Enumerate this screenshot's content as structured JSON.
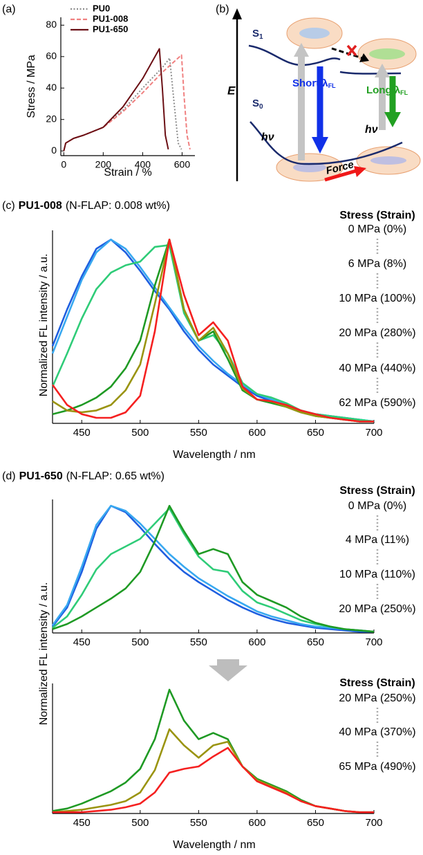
{
  "chart_data": [
    {
      "type": "line",
      "panel_label": "(a)",
      "x_label": "Strain / %",
      "y_label": "Stress / MPa",
      "xlim": [
        -15,
        665
      ],
      "xticks": [
        0,
        200,
        400,
        600
      ],
      "ylim": [
        -3,
        85
      ],
      "yticks": [
        0,
        20,
        40,
        60,
        80
      ],
      "legend": "upper left",
      "series": [
        {
          "name": "PU0",
          "color": "#8c8c8c",
          "dash": "dotted",
          "x": [
            0,
            10,
            50,
            100,
            200,
            300,
            400,
            500,
            537,
            560,
            580,
            597
          ],
          "values": [
            0,
            5,
            8,
            10,
            15,
            26,
            40,
            53,
            59,
            30,
            5,
            1
          ]
        },
        {
          "name": "PU1-008",
          "color": "#f08080",
          "dash": "dashed",
          "x": [
            0,
            10,
            50,
            100,
            200,
            300,
            400,
            500,
            597,
            610,
            625,
            640
          ],
          "values": [
            0,
            5,
            8,
            10,
            15,
            25,
            37,
            50,
            61,
            35,
            10,
            1
          ]
        },
        {
          "name": "PU1-650",
          "color": "#6b0f14",
          "dash": "solid",
          "x": [
            0,
            10,
            50,
            100,
            200,
            300,
            400,
            485,
            500,
            515,
            530
          ],
          "values": [
            0,
            5,
            8,
            10,
            15,
            28,
            46,
            65,
            40,
            10,
            1
          ]
        }
      ]
    },
    {
      "type": "line",
      "panel_label": "(c)",
      "title": "PU1-008",
      "subtitle": "(N-FLAP: 0.008 wt%)",
      "x_label": "Wavelength / nm",
      "y_label": "Normalized FL intensity / a.u.",
      "legend_title": "Stress (Strain)",
      "xlim": [
        425,
        700
      ],
      "xticks": [
        450,
        500,
        550,
        600,
        650,
        700
      ],
      "ylim": [
        0,
        1.05
      ],
      "x": [
        425,
        437.5,
        450,
        462.5,
        475,
        487.5,
        500,
        512.5,
        525,
        537.5,
        550,
        562.5,
        575,
        587.5,
        600,
        612.5,
        625,
        637.5,
        650,
        662.5,
        675,
        687.5,
        700
      ],
      "series": [
        {
          "name": "0 MPa (0%)",
          "color": "#1f5fe0",
          "values": [
            0.42,
            0.62,
            0.8,
            0.95,
            1.0,
            0.93,
            0.83,
            0.72,
            0.62,
            0.5,
            0.4,
            0.32,
            0.26,
            0.2,
            0.15,
            0.12,
            0.09,
            0.07,
            0.05,
            0.04,
            0.03,
            0.02,
            0.01
          ]
        },
        {
          "name": "6 MPa (8%)",
          "color": "#38a8f0",
          "values": [
            0.38,
            0.58,
            0.78,
            0.93,
            1.0,
            0.95,
            0.85,
            0.74,
            0.63,
            0.52,
            0.42,
            0.34,
            0.27,
            0.21,
            0.16,
            0.13,
            0.1,
            0.07,
            0.05,
            0.04,
            0.03,
            0.02,
            0.01
          ]
        },
        {
          "name": "10 MPa (100%)",
          "color": "#2fcc78",
          "values": [
            0.2,
            0.38,
            0.57,
            0.73,
            0.82,
            0.86,
            0.88,
            0.96,
            0.97,
            0.6,
            0.45,
            0.48,
            0.38,
            0.22,
            0.16,
            0.14,
            0.11,
            0.07,
            0.05,
            0.04,
            0.03,
            0.02,
            0.01
          ]
        },
        {
          "name": "20 MPa (280%)",
          "color": "#1f9a24",
          "values": [
            0.05,
            0.07,
            0.1,
            0.14,
            0.2,
            0.3,
            0.45,
            0.75,
            1.0,
            0.62,
            0.45,
            0.5,
            0.35,
            0.18,
            0.13,
            0.11,
            0.09,
            0.06,
            0.04,
            0.03,
            0.02,
            0.01,
            0.01
          ]
        },
        {
          "name": "40 MPa (440%)",
          "color": "#9a9410",
          "values": [
            0.12,
            0.07,
            0.06,
            0.07,
            0.1,
            0.18,
            0.32,
            0.65,
            1.0,
            0.62,
            0.45,
            0.52,
            0.38,
            0.19,
            0.13,
            0.12,
            0.09,
            0.06,
            0.04,
            0.03,
            0.02,
            0.01,
            0.01
          ]
        },
        {
          "name": "62 MPa (590%)",
          "color": "#f52020",
          "values": [
            0.21,
            0.1,
            0.05,
            0.03,
            0.03,
            0.06,
            0.15,
            0.5,
            1.0,
            0.7,
            0.48,
            0.55,
            0.45,
            0.2,
            0.13,
            0.12,
            0.1,
            0.07,
            0.05,
            0.03,
            0.02,
            0.01,
            0.01
          ]
        }
      ]
    },
    {
      "type": "line",
      "panel_label": "(d)",
      "title": "PU1-650",
      "subtitle": "(N-FLAP: 0.65 wt%)",
      "y_label": "Normalized FL intensity / a.u.",
      "legend_title": "Stress (Strain)",
      "xlim": [
        425,
        700
      ],
      "xticks": [
        450,
        500,
        550,
        600,
        650,
        700
      ],
      "ylim": [
        0,
        1.05
      ],
      "x": [
        425,
        437.5,
        450,
        462.5,
        475,
        487.5,
        500,
        512.5,
        525,
        537.5,
        550,
        562.5,
        575,
        587.5,
        600,
        612.5,
        625,
        637.5,
        650,
        662.5,
        675,
        687.5,
        700
      ],
      "series": [
        {
          "name": "0 MPa (0%)",
          "color": "#1f5fe0",
          "values": [
            0.05,
            0.2,
            0.48,
            0.82,
            1.0,
            0.95,
            0.83,
            0.7,
            0.58,
            0.48,
            0.4,
            0.33,
            0.26,
            0.2,
            0.15,
            0.11,
            0.08,
            0.06,
            0.04,
            0.03,
            0.02,
            0.01,
            0.01
          ]
        },
        {
          "name": "4 MPa (11%)",
          "color": "#38a8f0",
          "values": [
            0.06,
            0.22,
            0.52,
            0.85,
            1.0,
            0.96,
            0.86,
            0.74,
            0.62,
            0.52,
            0.43,
            0.36,
            0.29,
            0.23,
            0.17,
            0.13,
            0.1,
            0.07,
            0.05,
            0.04,
            0.03,
            0.02,
            0.01
          ]
        },
        {
          "name": "10 MPa (110%)",
          "color": "#2fcc78",
          "values": [
            0.04,
            0.13,
            0.3,
            0.5,
            0.62,
            0.68,
            0.74,
            0.86,
            0.98,
            0.78,
            0.6,
            0.5,
            0.48,
            0.33,
            0.24,
            0.2,
            0.15,
            0.1,
            0.07,
            0.05,
            0.03,
            0.02,
            0.01
          ]
        },
        {
          "name": "20 MPa (250%)",
          "color": "#1f9a24",
          "values": [
            0.03,
            0.07,
            0.13,
            0.2,
            0.27,
            0.35,
            0.48,
            0.72,
            1.0,
            0.8,
            0.62,
            0.66,
            0.62,
            0.4,
            0.3,
            0.25,
            0.2,
            0.13,
            0.08,
            0.05,
            0.03,
            0.02,
            0.01
          ]
        }
      ]
    },
    {
      "type": "line",
      "x_label": "Wavelength / nm",
      "legend_title": "Stress (Strain)",
      "xlim": [
        425,
        700
      ],
      "xticks": [
        450,
        500,
        550,
        600,
        650,
        700
      ],
      "ylim": [
        0,
        1.05
      ],
      "x": [
        425,
        437.5,
        450,
        462.5,
        475,
        487.5,
        500,
        512.5,
        525,
        537.5,
        550,
        562.5,
        575,
        587.5,
        600,
        612.5,
        625,
        637.5,
        650,
        662.5,
        675,
        687.5,
        700
      ],
      "series": [
        {
          "name": "20 MPa (250%)",
          "color": "#1f9a24",
          "values": [
            0.02,
            0.04,
            0.08,
            0.13,
            0.18,
            0.25,
            0.36,
            0.6,
            1.0,
            0.75,
            0.6,
            0.65,
            0.6,
            0.38,
            0.28,
            0.23,
            0.18,
            0.11,
            0.06,
            0.04,
            0.02,
            0.01,
            0.01
          ]
        },
        {
          "name": "40 MPa (370%)",
          "color": "#9a9410",
          "values": [
            0.01,
            0.02,
            0.03,
            0.05,
            0.07,
            0.1,
            0.17,
            0.35,
            0.68,
            0.55,
            0.45,
            0.55,
            0.58,
            0.38,
            0.27,
            0.22,
            0.17,
            0.1,
            0.06,
            0.04,
            0.02,
            0.01,
            0.01
          ]
        },
        {
          "name": "65 MPa (490%)",
          "color": "#f52020",
          "values": [
            0.01,
            0.01,
            0.01,
            0.02,
            0.03,
            0.05,
            0.08,
            0.17,
            0.33,
            0.36,
            0.38,
            0.46,
            0.53,
            0.38,
            0.26,
            0.21,
            0.16,
            0.1,
            0.06,
            0.04,
            0.02,
            0.01,
            0.01
          ]
        }
      ]
    }
  ],
  "diagram": {
    "panel_label": "(b)",
    "energy_axis": "E",
    "s1": "S",
    "s1_sub": "1",
    "s0": "S",
    "s0_sub": "0",
    "excitation_left": "hν",
    "excitation_right": "hν",
    "short": "Short λ",
    "short_sub": "FL",
    "long": "Long λ",
    "long_sub": "FL",
    "force": "Force"
  }
}
